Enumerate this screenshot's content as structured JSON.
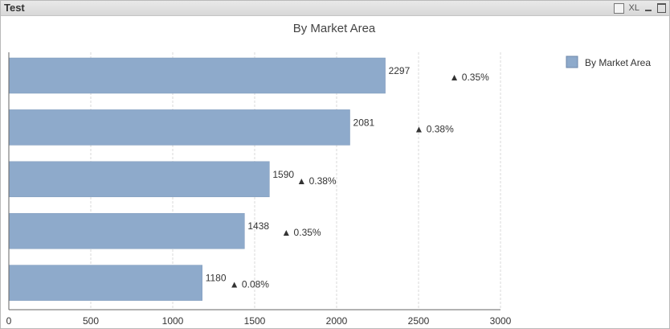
{
  "window": {
    "title": "Test",
    "icons": [
      "print-icon",
      "excel-icon",
      "minimize-icon",
      "maximize-icon"
    ],
    "xl_label": "XL"
  },
  "chart_data": {
    "type": "bar",
    "orientation": "horizontal",
    "title": "By Market Area",
    "categories": [
      "",
      "",
      "",
      "",
      ""
    ],
    "series": [
      {
        "name": "By Market Area",
        "values": [
          2297,
          2081,
          1590,
          1438,
          1180
        ]
      }
    ],
    "annotations": [
      "▲ 0.35%",
      "▲ 0.38%",
      "▲ 0.38%",
      "▲ 0.35%",
      "▲ 0.08%"
    ],
    "xlim": [
      0,
      3000
    ],
    "xticks": [
      0,
      500,
      1000,
      1500,
      2000,
      2500,
      3000
    ],
    "grid": true,
    "legend_position": "top-right",
    "colors": {
      "bar": "#8eaacb",
      "bar_stroke": "#7f9abb",
      "grid": "#d9d9d9",
      "text": "#333333"
    }
  }
}
